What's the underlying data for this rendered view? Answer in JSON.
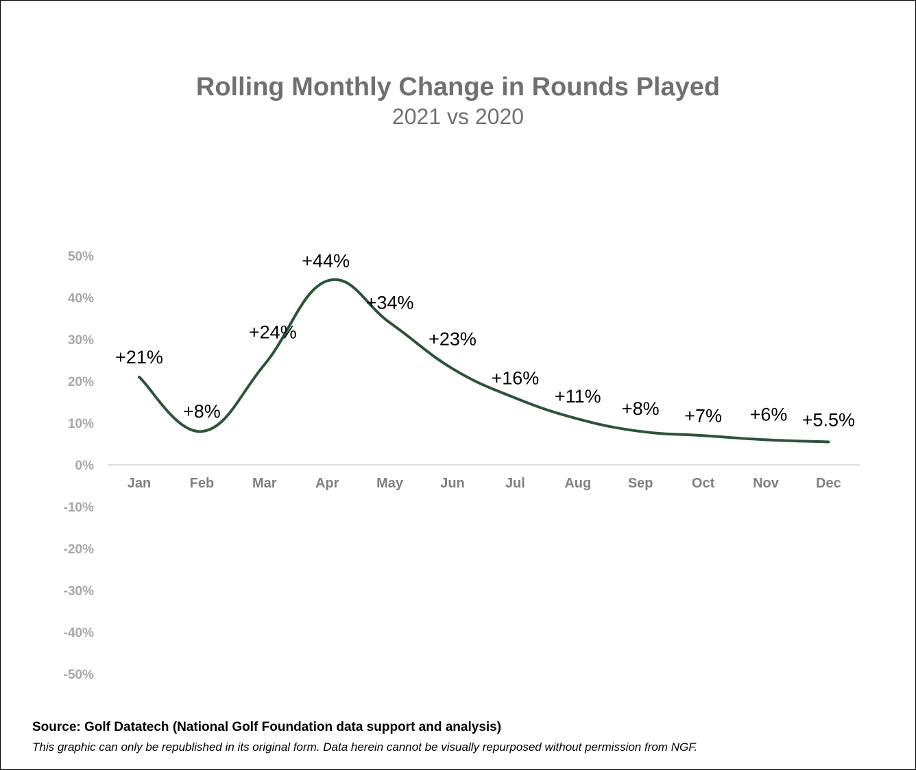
{
  "chart_data": {
    "type": "line",
    "title": "Rolling Monthly Change in Rounds Played",
    "subtitle": "2021 vs 2020",
    "categories": [
      "Jan",
      "Feb",
      "Mar",
      "Apr",
      "May",
      "Jun",
      "Jul",
      "Aug",
      "Sep",
      "Oct",
      "Nov",
      "Dec"
    ],
    "series": [
      {
        "values": [
          21,
          8,
          24,
          44,
          34,
          23,
          16,
          11,
          8,
          7,
          6,
          5.5
        ],
        "data_labels": [
          "+21%",
          "+8%",
          "+24%",
          "+44%",
          "+34%",
          "+23%",
          "+16%",
          "+11%",
          "+8%",
          "+7%",
          "+6%",
          "+5.5%"
        ],
        "color": "#2e5339",
        "smooth": true
      }
    ],
    "ylim": [
      -50,
      50
    ],
    "y_ticks": [
      50,
      40,
      30,
      20,
      10,
      0,
      -10,
      -20,
      -30,
      -40,
      -50
    ],
    "y_tick_labels": [
      "50%",
      "40%",
      "30%",
      "20%",
      "10%",
      "0%",
      "-10%",
      "-20%",
      "-30%",
      "-40%",
      "-50%"
    ],
    "grid": false,
    "legend": "none"
  },
  "footer": {
    "source": "Source: Golf Datatech (National Golf Foundation data support and analysis)",
    "note": "This graphic can only be republished in its original form. Data herein cannot be visually repurposed without permission from NGF."
  }
}
